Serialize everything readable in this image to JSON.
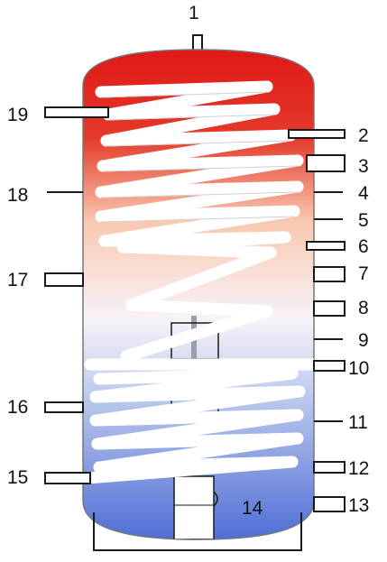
{
  "labels": {
    "top": "1",
    "right": [
      "2",
      "3",
      "4",
      "5",
      "6",
      "7",
      "8",
      "9",
      "10",
      "11",
      "12",
      "13"
    ],
    "left": [
      "19",
      "18",
      "17",
      "16",
      "15"
    ],
    "inner": "14"
  },
  "colors": {
    "hot": "#e01818",
    "warm": "#f9c8b0",
    "neutral": "#f7f3f8",
    "cool": "#b8c6ec",
    "cold": "#4f6ed6",
    "outline": "#1a1a1a",
    "coil": "#ffffff"
  }
}
